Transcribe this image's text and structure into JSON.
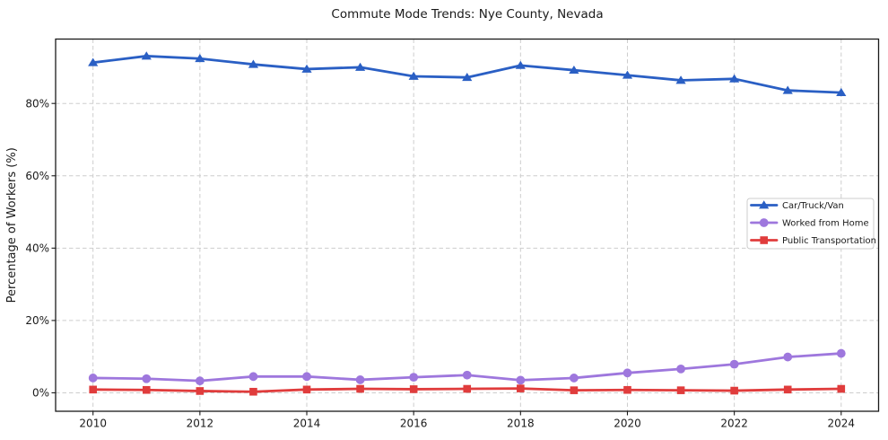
{
  "chart_data": {
    "type": "line",
    "title": "Commute Mode Trends: Nye County, Nevada",
    "xlabel": "",
    "ylabel": "Percentage of Workers (%)",
    "x": [
      2010,
      2011,
      2012,
      2013,
      2014,
      2015,
      2016,
      2017,
      2018,
      2019,
      2020,
      2021,
      2022,
      2023,
      2024
    ],
    "series": [
      {
        "name": "Car/Truck/Van",
        "color": "#2a5fc4",
        "marker": "triangle",
        "values": [
          91.3,
          93.1,
          92.4,
          90.8,
          89.5,
          90.0,
          87.5,
          87.2,
          90.5,
          89.2,
          87.8,
          86.4,
          86.8,
          83.6,
          83.0
        ]
      },
      {
        "name": "Worked from Home",
        "color": "#9e77dd",
        "marker": "circle",
        "values": [
          4.1,
          3.9,
          3.3,
          4.5,
          4.5,
          3.6,
          4.3,
          4.9,
          3.5,
          4.1,
          5.5,
          6.6,
          7.9,
          9.9,
          10.9
        ]
      },
      {
        "name": "Public Transportation",
        "color": "#e03c3c",
        "marker": "square",
        "values": [
          0.9,
          0.8,
          0.5,
          0.3,
          0.9,
          1.1,
          1.0,
          1.1,
          1.2,
          0.7,
          0.8,
          0.7,
          0.6,
          0.9,
          1.1
        ]
      }
    ],
    "xticks": [
      2010,
      2012,
      2014,
      2016,
      2018,
      2020,
      2022,
      2024
    ],
    "xtick_labels": [
      "2010",
      "2012",
      "2014",
      "2016",
      "2018",
      "2020",
      "2022",
      "2024"
    ],
    "yticks": [
      0,
      20,
      40,
      60,
      80
    ],
    "ytick_labels": [
      "0%",
      "20%",
      "40%",
      "60%",
      "80%"
    ],
    "xlim": [
      2009.3,
      2024.7
    ],
    "ylim": [
      -5.1,
      97.8
    ],
    "grid": true,
    "grid_color": "#cdcdcd",
    "axis_color": "#1a1a1a",
    "legend": {
      "position": "center-right",
      "entries": [
        "Car/Truck/Van",
        "Worked from Home",
        "Public Transportation"
      ],
      "border_color": "#cccccc",
      "background": "#ffffff"
    }
  }
}
